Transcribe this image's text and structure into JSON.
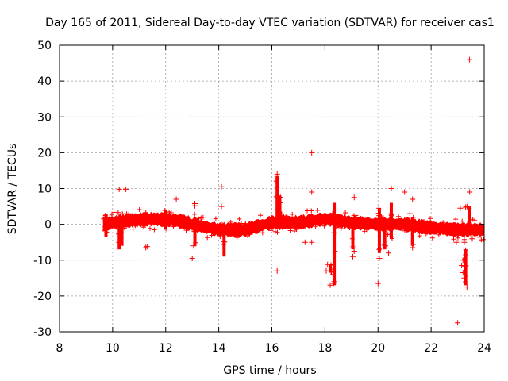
{
  "chart_data": {
    "type": "scatter",
    "title": "Day 165 of 2011, Sidereal Day-to-day VTEC variation (SDTVAR) for receiver cas1",
    "xlabel": "GPS time / hours",
    "ylabel": "SDTVAR / TECUs",
    "xlim": [
      8,
      24
    ],
    "ylim": [
      -30,
      50
    ],
    "xticks": [
      8,
      10,
      12,
      14,
      16,
      18,
      20,
      22,
      24
    ],
    "yticks": [
      -30,
      -20,
      -10,
      0,
      10,
      20,
      30,
      40,
      50
    ],
    "xtick_labels": [
      "8",
      "10",
      "12",
      "14",
      "16",
      "18",
      "20",
      "22",
      "24"
    ],
    "ytick_labels": [
      "-30",
      "-20",
      "-10",
      "0",
      "10",
      "20",
      "30",
      "40",
      "50"
    ],
    "grid": true,
    "marker": "+",
    "series_color": "#ff0000",
    "band": {
      "description": "dense band of points centred near zero",
      "x_start": 9.65,
      "x_end": 24.0,
      "centre": [
        [
          9.65,
          0.0
        ],
        [
          10.5,
          1.0
        ],
        [
          11.5,
          1.5
        ],
        [
          12.5,
          1.0
        ],
        [
          13.0,
          0.0
        ],
        [
          14.0,
          -1.5
        ],
        [
          15.0,
          -1.5
        ],
        [
          16.0,
          0.5
        ],
        [
          17.0,
          0.5
        ],
        [
          18.0,
          1.5
        ],
        [
          19.0,
          0.5
        ],
        [
          20.0,
          0.0
        ],
        [
          21.0,
          0.0
        ],
        [
          22.0,
          -1.0
        ],
        [
          23.0,
          -1.5
        ],
        [
          24.0,
          -1.5
        ]
      ],
      "half_width": 1.6
    },
    "vertical_spreads": [
      {
        "x": 9.75,
        "y_min": -3.5,
        "y_max": 3.0
      },
      {
        "x": 10.25,
        "y_min": -7.0,
        "y_max": 2.0
      },
      {
        "x": 10.35,
        "y_min": -6.0,
        "y_max": 2.0
      },
      {
        "x": 12.0,
        "y_min": -1.5,
        "y_max": 4.0
      },
      {
        "x": 13.1,
        "y_min": -6.0,
        "y_max": 2.0
      },
      {
        "x": 14.2,
        "y_min": -9.0,
        "y_max": 0.0
      },
      {
        "x": 16.2,
        "y_min": -1.0,
        "y_max": 13.5
      },
      {
        "x": 16.3,
        "y_min": -1.0,
        "y_max": 8.0
      },
      {
        "x": 18.2,
        "y_min": -13.5,
        "y_max": -11.0
      },
      {
        "x": 18.35,
        "y_min": -17.0,
        "y_max": 6.0
      },
      {
        "x": 19.05,
        "y_min": -7.0,
        "y_max": 1.0
      },
      {
        "x": 20.05,
        "y_min": -8.0,
        "y_max": 4.5
      },
      {
        "x": 20.25,
        "y_min": -7.0,
        "y_max": 1.0
      },
      {
        "x": 20.5,
        "y_min": -4.0,
        "y_max": 6.0
      },
      {
        "x": 21.3,
        "y_min": -6.0,
        "y_max": 2.0
      },
      {
        "x": 23.3,
        "y_min": -17.0,
        "y_max": -7.0
      },
      {
        "x": 23.45,
        "y_min": -1.0,
        "y_max": 5.0
      }
    ],
    "points": [
      [
        23.45,
        46.0
      ],
      [
        17.5,
        20.0
      ],
      [
        16.2,
        14.0
      ],
      [
        14.1,
        10.5
      ],
      [
        20.5,
        10.0
      ],
      [
        10.25,
        9.8
      ],
      [
        10.5,
        9.8
      ],
      [
        23.45,
        9.0
      ],
      [
        17.5,
        9.0
      ],
      [
        21.0,
        9.0
      ],
      [
        12.4,
        7.0
      ],
      [
        21.3,
        7.0
      ],
      [
        13.1,
        5.8
      ],
      [
        13.1,
        5.2
      ],
      [
        14.1,
        5.0
      ],
      [
        19.1,
        7.5
      ],
      [
        21.2,
        3.0
      ],
      [
        23.1,
        4.5
      ],
      [
        23.3,
        4.8
      ],
      [
        23.35,
        5.0
      ],
      [
        11.25,
        -6.5
      ],
      [
        11.3,
        -6.2
      ],
      [
        13.0,
        -9.5
      ],
      [
        13.05,
        -6.0
      ],
      [
        17.25,
        -5.0
      ],
      [
        17.5,
        -5.0
      ],
      [
        18.05,
        -13.0
      ],
      [
        16.2,
        -13.0
      ],
      [
        18.1,
        -11.2
      ],
      [
        18.2,
        -17.0
      ],
      [
        19.05,
        -9.0
      ],
      [
        19.1,
        -7.5
      ],
      [
        20.0,
        -16.5
      ],
      [
        20.05,
        -9.5
      ],
      [
        20.4,
        -8.0
      ],
      [
        21.3,
        -6.5
      ],
      [
        23.0,
        -27.5
      ],
      [
        23.15,
        -11.5
      ],
      [
        23.2,
        -13.5
      ],
      [
        23.25,
        -15.0
      ],
      [
        23.35,
        -17.5
      ],
      [
        23.3,
        -8.5
      ],
      [
        23.2,
        -10.0
      ],
      [
        22.95,
        -5.0
      ],
      [
        23.0,
        -3.0
      ],
      [
        23.25,
        -5.0
      ],
      [
        23.5,
        -3.5
      ],
      [
        23.55,
        -4.0
      ],
      [
        18.35,
        -16.0
      ],
      [
        18.3,
        -14.0
      ]
    ]
  }
}
